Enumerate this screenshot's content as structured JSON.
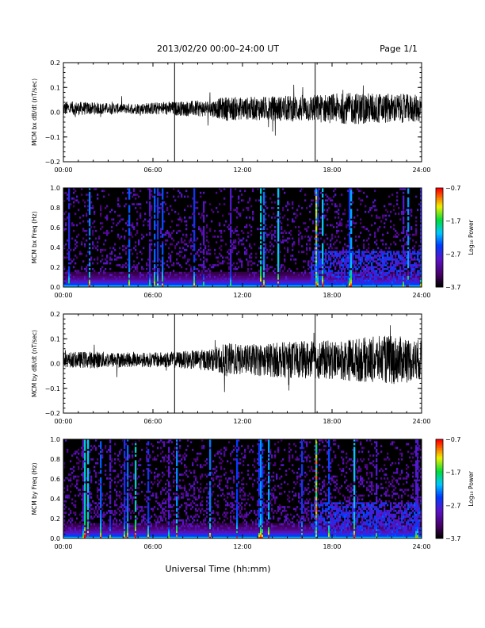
{
  "header": {
    "title": "2013/02/20  00:00–24:00 UT",
    "page": "Page 1/1"
  },
  "xlabel": "Universal Time (hh:mm)",
  "chart_data": [
    {
      "type": "line",
      "ylabel": "MCM bx dB/dt (nT/sec)",
      "xlim": [
        0,
        24
      ],
      "ylim": [
        -0.2,
        0.2
      ],
      "xticks": [
        "00:00",
        "06:00",
        "12:00",
        "18:00",
        "24:00"
      ],
      "yticks": [
        "−0.2",
        "−0.1",
        "0.0",
        "0.1",
        "0.2"
      ],
      "markers_hours": [
        7.45,
        16.87
      ],
      "envelope": [
        [
          0,
          0.03
        ],
        [
          2,
          0.025
        ],
        [
          4,
          0.02
        ],
        [
          6,
          0.025
        ],
        [
          8,
          0.03
        ],
        [
          10,
          0.035
        ],
        [
          11,
          0.05
        ],
        [
          12,
          0.045
        ],
        [
          14,
          0.05
        ],
        [
          16,
          0.055
        ],
        [
          18,
          0.06
        ],
        [
          20,
          0.065
        ],
        [
          22,
          0.06
        ],
        [
          24,
          0.055
        ]
      ]
    },
    {
      "type": "heatmap",
      "ylabel": "MCM bx Freq (Hz)",
      "xlim": [
        0,
        24
      ],
      "ylim": [
        0,
        1.0
      ],
      "xticks": [
        "00:00",
        "06:00",
        "12:00",
        "18:00",
        "24:00"
      ],
      "yticks": [
        "0.0",
        "0.2",
        "0.4",
        "0.6",
        "0.8",
        "1.0"
      ],
      "colorbar": {
        "label": "Log₁₀ Power",
        "min": -3.7,
        "max": -0.7,
        "ticks": [
          "−0.7",
          "−1.7",
          "−2.7",
          "−3.7"
        ]
      }
    },
    {
      "type": "line",
      "ylabel": "MCM by dB/dt (nT/sec)",
      "xlim": [
        0,
        24
      ],
      "ylim": [
        -0.2,
        0.2
      ],
      "xticks": [
        "00:00",
        "06:00",
        "12:00",
        "18:00",
        "24:00"
      ],
      "yticks": [
        "−0.2",
        "−0.1",
        "0.0",
        "0.1",
        "0.2"
      ],
      "markers_hours": [
        7.45,
        16.87
      ],
      "envelope": [
        [
          0,
          0.03
        ],
        [
          2,
          0.035
        ],
        [
          4,
          0.03
        ],
        [
          6,
          0.03
        ],
        [
          8,
          0.035
        ],
        [
          10,
          0.045
        ],
        [
          11,
          0.07
        ],
        [
          12,
          0.06
        ],
        [
          14,
          0.07
        ],
        [
          16,
          0.075
        ],
        [
          18,
          0.08
        ],
        [
          20,
          0.09
        ],
        [
          22,
          0.1
        ],
        [
          24,
          0.08
        ]
      ]
    },
    {
      "type": "heatmap",
      "ylabel": "MCM by Freq (Hz)",
      "xlim": [
        0,
        24
      ],
      "ylim": [
        0,
        1.0
      ],
      "xticks": [
        "00:00",
        "06:00",
        "12:00",
        "18:00",
        "24:00"
      ],
      "yticks": [
        "0.0",
        "0.2",
        "0.4",
        "0.6",
        "0.8",
        "1.0"
      ],
      "colorbar": {
        "label": "Log₁₀ Power",
        "min": -3.7,
        "max": -0.7,
        "ticks": [
          "−0.7",
          "−1.7",
          "−2.7",
          "−3.7"
        ]
      }
    }
  ]
}
